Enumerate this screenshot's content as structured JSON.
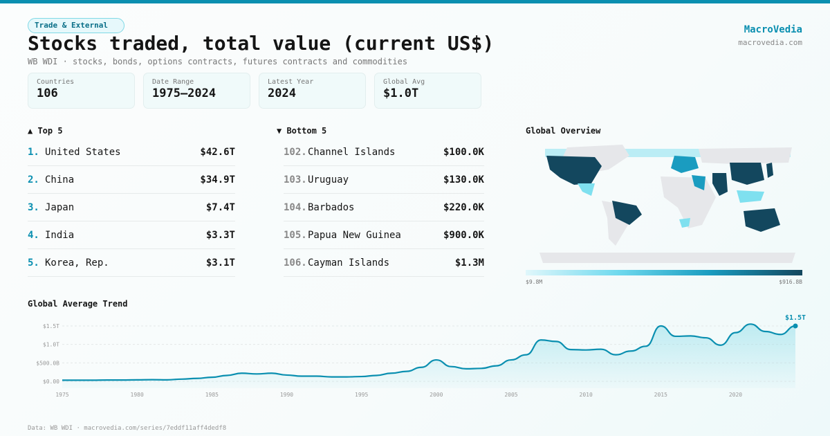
{
  "category_tag": "Trade & External",
  "title": "Stocks traded, total value (current US$)",
  "subtitle": "WB WDI · stocks, bonds, options contracts, futures contracts and commodities",
  "brand": {
    "name": "MacroVedia",
    "url": "macrovedia.com"
  },
  "stats": [
    {
      "label": "Countries",
      "value": "106"
    },
    {
      "label": "Date Range",
      "value": "1975–2024"
    },
    {
      "label": "Latest Year",
      "value": "2024"
    },
    {
      "label": "Global Avg",
      "value": "$1.0T"
    }
  ],
  "top5": {
    "title": "▲ Top 5",
    "items": [
      {
        "rank": "1.",
        "name": "United States",
        "value": "$42.6T"
      },
      {
        "rank": "2.",
        "name": "China",
        "value": "$34.9T"
      },
      {
        "rank": "3.",
        "name": "Japan",
        "value": "$7.4T"
      },
      {
        "rank": "4.",
        "name": "India",
        "value": "$3.3T"
      },
      {
        "rank": "5.",
        "name": "Korea, Rep.",
        "value": "$3.1T"
      }
    ]
  },
  "bottom5": {
    "title": "▼ Bottom 5",
    "items": [
      {
        "rank": "102.",
        "name": "Channel Islands",
        "value": "$100.0K"
      },
      {
        "rank": "103.",
        "name": "Uruguay",
        "value": "$130.0K"
      },
      {
        "rank": "104.",
        "name": "Barbados",
        "value": "$220.0K"
      },
      {
        "rank": "105.",
        "name": "Papua New Guinea",
        "value": "$900.0K"
      },
      {
        "rank": "106.",
        "name": "Cayman Islands",
        "value": "$1.3M"
      }
    ]
  },
  "map": {
    "title": "Global Overview",
    "legend_min": "$9.8M",
    "legend_max": "$916.8B"
  },
  "footer": "Data: WB WDI · macrovedia.com/series/7eddf11aff4dedf8",
  "colors": {
    "accent": "#0a8fb0",
    "dark": "#13475e"
  },
  "chart_data": {
    "type": "area",
    "title": "Global Average Trend",
    "xlabel": "",
    "ylabel": "",
    "x": [
      1975,
      1976,
      1977,
      1978,
      1979,
      1980,
      1981,
      1982,
      1983,
      1984,
      1985,
      1986,
      1987,
      1988,
      1989,
      1990,
      1991,
      1992,
      1993,
      1994,
      1995,
      1996,
      1997,
      1998,
      1999,
      2000,
      2001,
      2002,
      2003,
      2004,
      2005,
      2006,
      2007,
      2008,
      2009,
      2010,
      2011,
      2012,
      2013,
      2014,
      2015,
      2016,
      2017,
      2018,
      2019,
      2020,
      2021,
      2022,
      2023,
      2024
    ],
    "values_trillion": [
      0.03,
      0.03,
      0.03,
      0.035,
      0.035,
      0.04,
      0.045,
      0.04,
      0.06,
      0.08,
      0.11,
      0.16,
      0.22,
      0.2,
      0.22,
      0.17,
      0.14,
      0.14,
      0.12,
      0.12,
      0.13,
      0.16,
      0.22,
      0.27,
      0.38,
      0.58,
      0.4,
      0.34,
      0.35,
      0.42,
      0.58,
      0.72,
      1.12,
      1.08,
      0.86,
      0.85,
      0.87,
      0.72,
      0.82,
      0.95,
      1.5,
      1.22,
      1.23,
      1.18,
      0.98,
      1.32,
      1.55,
      1.35,
      1.27,
      1.5
    ],
    "yticks": [
      {
        "v": 0,
        "label": "$0.00"
      },
      {
        "v": 0.5,
        "label": "$500.0B"
      },
      {
        "v": 1.0,
        "label": "$1.0T"
      },
      {
        "v": 1.5,
        "label": "$1.5T"
      }
    ],
    "xticks": [
      "1975",
      "1980",
      "1985",
      "1990",
      "1995",
      "2000",
      "2005",
      "2010",
      "2015",
      "2020"
    ],
    "ylim": [
      0,
      1.5
    ],
    "grid": true,
    "last_label": "$1.5T"
  }
}
